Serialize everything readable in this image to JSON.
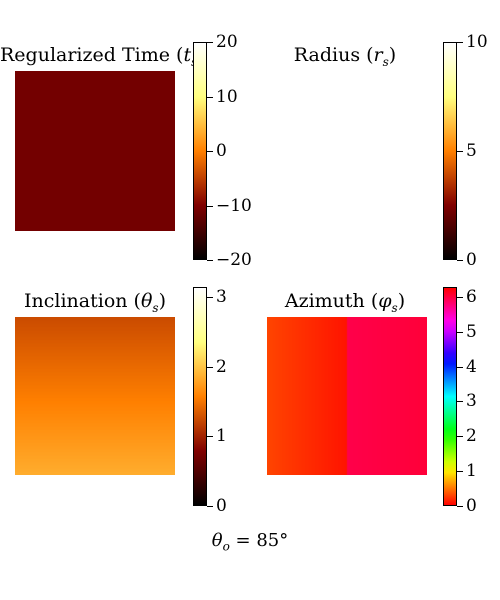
{
  "footer": {
    "symbol": "θ",
    "sub": "o",
    "eq": " = ",
    "value": "85",
    "unit": "°"
  },
  "chart_data": [
    {
      "type": "heatmap",
      "title_text": "Regularized Time (",
      "title_sym": "t",
      "title_sub": "s",
      "title_close": ")",
      "colormap": "afmhot",
      "colorbar_range": [
        -20,
        20
      ],
      "colorbar_ticks": [
        {
          "v": 20,
          "label": "20"
        },
        {
          "v": 10,
          "label": "10"
        },
        {
          "v": 0,
          "label": "0"
        },
        {
          "v": -10,
          "label": "−10"
        },
        {
          "v": -20,
          "label": "−20"
        }
      ],
      "field": {
        "kind": "constant",
        "value": -11
      }
    },
    {
      "type": "heatmap",
      "title_text": "Radius (",
      "title_sym": "r",
      "title_sub": "s",
      "title_close": ")",
      "colormap": "afmhot",
      "colorbar_range": [
        0,
        10
      ],
      "colorbar_ticks": [
        {
          "v": 10,
          "label": "10"
        },
        {
          "v": 5,
          "label": "5"
        },
        {
          "v": 0,
          "label": "0"
        }
      ],
      "field": {
        "kind": "constant",
        "value": 10
      }
    },
    {
      "type": "heatmap",
      "title_text": "Inclination (",
      "title_sym": "θ",
      "title_sub": "s",
      "title_close": ")",
      "colormap": "afmhot",
      "colorbar_range": [
        0,
        3.14159
      ],
      "colorbar_ticks": [
        {
          "v": 3,
          "label": "3"
        },
        {
          "v": 2,
          "label": "2"
        },
        {
          "v": 1,
          "label": "1"
        },
        {
          "v": 0,
          "label": "0"
        }
      ],
      "field": {
        "kind": "vertical-gradient",
        "top": 1.25,
        "bottom": 1.85
      }
    },
    {
      "type": "heatmap",
      "title_text": "Azimuth (",
      "title_sym": "φ",
      "title_sub": "s",
      "title_close": ")",
      "colormap": "hsv",
      "colorbar_range": [
        0,
        6.28319
      ],
      "colorbar_ticks": [
        {
          "v": 6,
          "label": "6"
        },
        {
          "v": 5,
          "label": "5"
        },
        {
          "v": 4,
          "label": "4"
        },
        {
          "v": 3,
          "label": "3"
        },
        {
          "v": 2,
          "label": "2"
        },
        {
          "v": 1,
          "label": "1"
        },
        {
          "v": 0,
          "label": "0"
        }
      ],
      "field": {
        "kind": "azimuth-split",
        "left_edge": 0.28,
        "left_inner": 0.08,
        "right_inner": 5.98,
        "right_edge": 6.05
      }
    }
  ]
}
